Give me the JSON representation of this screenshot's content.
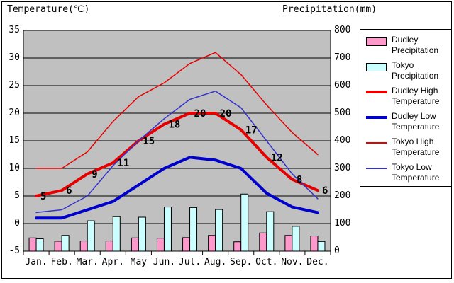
{
  "titles": {
    "temperature_axis": "Temperature(℃)",
    "precipitation_axis": "Precipitation(mm)"
  },
  "chart_data": {
    "type": "combo-bar-line",
    "categories": [
      "Jan.",
      "Feb.",
      "Mar.",
      "Apr.",
      "May",
      "Jun.",
      "Jul.",
      "Aug.",
      "Sep.",
      "Oct.",
      "Nov.",
      "Dec."
    ],
    "left_axis": {
      "title": "Temperature(℃)",
      "min": -5,
      "max": 35,
      "step": 5,
      "ticks": [
        35,
        30,
        25,
        20,
        15,
        10,
        5,
        0,
        -5
      ],
      "grid": true
    },
    "right_axis": {
      "title": "Precipitation(mm)",
      "min": 0,
      "max": 800,
      "step": 100,
      "ticks": [
        800,
        700,
        600,
        500,
        400,
        300,
        200,
        100,
        0
      ]
    },
    "legend_position": "right",
    "series": [
      {
        "name": "Dudley Precipitation",
        "type": "bar",
        "axis": "right",
        "color": "#ff99cc",
        "values": [
          48,
          36,
          37,
          37,
          48,
          47,
          49,
          57,
          34,
          66,
          57,
          55
        ]
      },
      {
        "name": "Tokyo Precipitation",
        "type": "bar",
        "axis": "right",
        "color": "#ccffff",
        "values": [
          45,
          57,
          110,
          125,
          123,
          160,
          158,
          151,
          207,
          143,
          90,
          35
        ]
      },
      {
        "name": "Dudley High Temperature",
        "type": "line",
        "weight": "thick",
        "axis": "left",
        "color": "#e60000",
        "values": [
          5,
          6,
          9,
          11,
          15,
          18,
          20,
          20,
          17,
          12,
          8,
          6
        ],
        "point_labels": [
          "5",
          "6",
          "9",
          "11",
          "15",
          "18",
          "20",
          "20",
          "17",
          "12",
          "8",
          "6"
        ]
      },
      {
        "name": "Dudley Low Temperature",
        "type": "line",
        "weight": "thick",
        "axis": "left",
        "color": "#0000cc",
        "values": [
          1,
          1,
          2.5,
          4,
          7,
          10,
          12,
          11.5,
          10,
          5.5,
          3,
          2
        ]
      },
      {
        "name": "Tokyo High Temperature",
        "type": "line",
        "weight": "thin",
        "axis": "left",
        "color": "#e60000",
        "values": [
          10,
          10,
          13,
          18.5,
          23,
          25.5,
          29,
          31,
          27,
          21.5,
          16.5,
          12.5
        ]
      },
      {
        "name": "Tokyo Low Temperature",
        "type": "line",
        "weight": "thin",
        "axis": "left",
        "color": "#3333cc",
        "values": [
          2,
          2.5,
          5,
          10.5,
          15,
          19,
          22.5,
          24,
          21,
          15,
          9,
          4.5
        ]
      }
    ]
  },
  "legend": {
    "entries": [
      {
        "label_line1": "Dudley",
        "label_line2": "Precipitation",
        "swatch_type": "rect",
        "color": "#ff99cc",
        "icon": "pink-bar-swatch"
      },
      {
        "label_line1": "Tokyo",
        "label_line2": "Precipitation",
        "swatch_type": "rect",
        "color": "#ccffff",
        "icon": "cyan-bar-swatch"
      },
      {
        "label_line1": "Dudley High",
        "label_line2": "Temperature",
        "swatch_type": "thick-line",
        "color": "#e60000",
        "icon": "thick-red-line-swatch"
      },
      {
        "label_line1": "Dudley Low",
        "label_line2": "Temperature",
        "swatch_type": "thick-line",
        "color": "#0000cc",
        "icon": "thick-blue-line-swatch"
      },
      {
        "label_line1": "Tokyo High",
        "label_line2": "Temperature",
        "swatch_type": "thin-line",
        "color": "#e60000",
        "icon": "thin-red-line-swatch"
      },
      {
        "label_line1": "Tokyo Low",
        "label_line2": "Temperature",
        "swatch_type": "thin-line",
        "color": "#3333cc",
        "icon": "thin-blue-line-swatch"
      }
    ]
  },
  "colors": {
    "plot_background": "#c0c0c0",
    "grid": "#000000",
    "frame": "#000000",
    "bar_border": "#000000"
  }
}
